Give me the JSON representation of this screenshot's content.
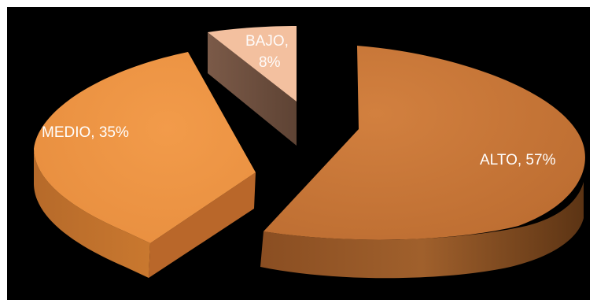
{
  "chart_data": {
    "type": "pie",
    "style": "3d-exploded",
    "title": "",
    "slices": [
      {
        "label": "ALTO",
        "value": 57,
        "display": "ALTO, 57%",
        "color": "#c8763a"
      },
      {
        "label": "MEDIO",
        "value": 35,
        "display": "MEDIO, 35%",
        "color": "#ee9645"
      },
      {
        "label": "BAJO",
        "value": 8,
        "display_line1": "BAJO,",
        "display_line2": "8%",
        "color": "#f3c09f"
      }
    ],
    "background": "#000000",
    "legend": "none"
  }
}
